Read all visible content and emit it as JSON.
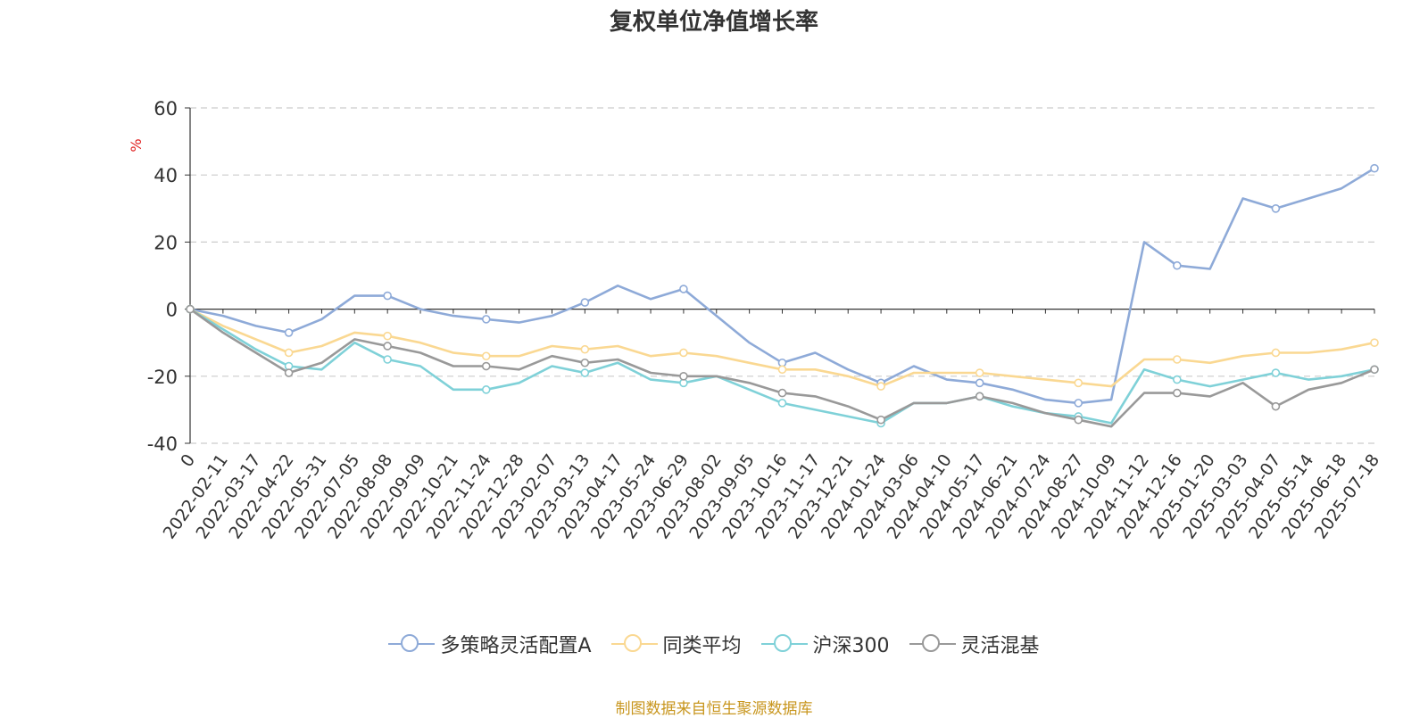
{
  "title": "复权单位净值增长率",
  "source_note": "制图数据来自恒生聚源数据库",
  "source_color": "#c8961e",
  "chart_data": {
    "type": "line",
    "title": "复权单位净值增长率",
    "ylabel": "%",
    "ylabel_color": "#e02020",
    "ylim": [
      -40,
      60
    ],
    "yticks": [
      "60",
      "40",
      "20",
      "0",
      "-20",
      "-40"
    ],
    "ytick_values": [
      60,
      40,
      20,
      0,
      -20,
      -40
    ],
    "grid": true,
    "legend_position": "bottom-center",
    "x": [
      "0",
      "2022-02-11",
      "2022-03-17",
      "2022-04-22",
      "2022-05-31",
      "2022-07-05",
      "2022-08-08",
      "2022-09-09",
      "2022-10-21",
      "2022-11-24",
      "2022-12-28",
      "2023-02-07",
      "2023-03-13",
      "2023-04-17",
      "2023-05-24",
      "2023-06-29",
      "2023-08-02",
      "2023-09-05",
      "2023-10-16",
      "2023-11-17",
      "2023-12-21",
      "2024-01-24",
      "2024-03-06",
      "2024-04-10",
      "2024-05-17",
      "2024-06-21",
      "2024-07-24",
      "2024-08-27",
      "2024-10-09",
      "2024-11-12",
      "2024-12-16",
      "2025-01-20",
      "2025-03-03",
      "2025-04-07",
      "2025-05-14",
      "2025-06-18",
      "2025-07-18"
    ],
    "series": [
      {
        "name": "多策略灵活配置A",
        "color": "#8eaad8",
        "values": [
          0,
          -2,
          -5,
          -7,
          -3,
          4,
          4,
          0,
          -2,
          -3,
          -4,
          -2,
          2,
          7,
          3,
          6,
          -2,
          -10,
          -16,
          -13,
          -18,
          -22,
          -17,
          -21,
          -22,
          -24,
          -27,
          -28,
          -27,
          20,
          13,
          12,
          33,
          30,
          33,
          36,
          42
        ]
      },
      {
        "name": "同类平均",
        "color": "#fad892",
        "values": [
          0,
          -5,
          -9,
          -13,
          -11,
          -7,
          -8,
          -10,
          -13,
          -14,
          -14,
          -11,
          -12,
          -11,
          -14,
          -13,
          -14,
          -16,
          -18,
          -18,
          -20,
          -23,
          -19,
          -19,
          -19,
          -20,
          -21,
          -22,
          -23,
          -15,
          -15,
          -16,
          -14,
          -13,
          -13,
          -12,
          -10
        ]
      },
      {
        "name": "沪深300",
        "color": "#7fd1d8",
        "values": [
          0,
          -6,
          -12,
          -17,
          -18,
          -10,
          -15,
          -17,
          -24,
          -24,
          -22,
          -17,
          -19,
          -16,
          -21,
          -22,
          -20,
          -24,
          -28,
          -30,
          -32,
          -34,
          -28,
          -28,
          -26,
          -29,
          -31,
          -32,
          -34,
          -18,
          -21,
          -23,
          -21,
          -19,
          -21,
          -20,
          -18
        ]
      },
      {
        "name": "灵活混基",
        "color": "#999999",
        "values": [
          0,
          -7,
          -13,
          -19,
          -16,
          -9,
          -11,
          -13,
          -17,
          -17,
          -18,
          -14,
          -16,
          -15,
          -19,
          -20,
          -20,
          -22,
          -25,
          -26,
          -29,
          -33,
          -28,
          -28,
          -26,
          -28,
          -31,
          -33,
          -35,
          -25,
          -25,
          -26,
          -22,
          -29,
          -24,
          -22,
          -18
        ]
      }
    ]
  }
}
